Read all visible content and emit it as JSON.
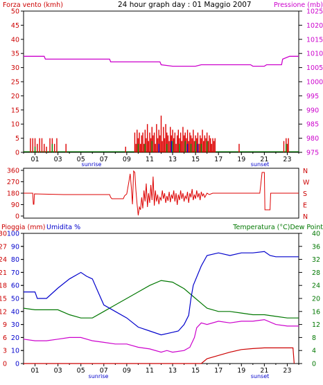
{
  "chart_data": [
    {
      "type": "line",
      "title": "24 hour graph day : 01 Maggio 2007",
      "left_label": "Forza vento (kmh)",
      "right_label": "Pressione (mb)",
      "colors": {
        "wind_gust": "#dd0000",
        "wind_avg": "#008800",
        "wind_alt": "#0000cc",
        "pressure": "#cc00cc",
        "axis_left": "#cc0000",
        "axis_right": "#cc00cc"
      },
      "ylim_left": [
        0,
        50
      ],
      "yticks_left": [
        "0",
        "5",
        "10",
        "15",
        "20",
        "25",
        "30",
        "35",
        "40",
        "45",
        "50"
      ],
      "ylim_right": [
        975,
        1025
      ],
      "yticks_right": [
        "975",
        "980",
        "985",
        "990",
        "995",
        "1000",
        "1005",
        "1010",
        "1015",
        "1020",
        "1025"
      ],
      "x_hours": [
        "01",
        "03",
        "05",
        "07",
        "09",
        "11",
        "13",
        "15",
        "17",
        "19",
        "21",
        "23"
      ],
      "sunrise_label": "sunrise",
      "sunset_label": "sunset",
      "pressure_series": [
        [
          0,
          1009
        ],
        [
          1.8,
          1009
        ],
        [
          1.9,
          1008
        ],
        [
          7.5,
          1008
        ],
        [
          7.6,
          1007
        ],
        [
          11.9,
          1007
        ],
        [
          12,
          1006
        ],
        [
          13,
          1005.5
        ],
        [
          15,
          1005.5
        ],
        [
          15.5,
          1006
        ],
        [
          17.8,
          1006
        ],
        [
          18,
          1006
        ],
        [
          19.8,
          1006
        ],
        [
          20,
          1005.5
        ],
        [
          21,
          1005.5
        ],
        [
          21.2,
          1006
        ],
        [
          22.5,
          1006
        ],
        [
          22.6,
          1008
        ],
        [
          23.2,
          1009
        ],
        [
          24,
          1009
        ]
      ],
      "wind_gusts": [
        [
          0.6,
          5
        ],
        [
          0.8,
          5
        ],
        [
          1.0,
          5
        ],
        [
          1.2,
          3
        ],
        [
          1.4,
          5
        ],
        [
          1.6,
          5
        ],
        [
          1.8,
          3
        ],
        [
          2.0,
          2
        ],
        [
          2.3,
          5
        ],
        [
          2.5,
          5
        ],
        [
          2.7,
          3
        ],
        [
          2.9,
          5
        ],
        [
          3.7,
          3
        ],
        [
          8.9,
          2
        ],
        [
          9.7,
          7
        ],
        [
          9.8,
          3
        ],
        [
          9.9,
          8
        ],
        [
          10.0,
          5
        ],
        [
          10.1,
          7
        ],
        [
          10.2,
          3
        ],
        [
          10.3,
          6
        ],
        [
          10.4,
          7
        ],
        [
          10.5,
          3
        ],
        [
          10.6,
          8
        ],
        [
          10.7,
          5
        ],
        [
          10.8,
          10
        ],
        [
          10.9,
          4
        ],
        [
          11.0,
          7
        ],
        [
          11.1,
          5
        ],
        [
          11.2,
          9
        ],
        [
          11.3,
          6
        ],
        [
          11.4,
          7
        ],
        [
          11.5,
          3
        ],
        [
          11.6,
          10
        ],
        [
          11.7,
          5
        ],
        [
          11.8,
          8
        ],
        [
          11.9,
          6
        ],
        [
          12.0,
          13
        ],
        [
          12.1,
          4
        ],
        [
          12.2,
          9
        ],
        [
          12.3,
          5
        ],
        [
          12.4,
          10
        ],
        [
          12.5,
          7
        ],
        [
          12.6,
          6
        ],
        [
          12.7,
          4
        ],
        [
          12.8,
          9
        ],
        [
          12.9,
          6
        ],
        [
          13.0,
          8
        ],
        [
          13.1,
          5
        ],
        [
          13.2,
          7
        ],
        [
          13.3,
          3
        ],
        [
          13.4,
          6
        ],
        [
          13.5,
          8
        ],
        [
          13.6,
          5
        ],
        [
          13.7,
          7
        ],
        [
          13.8,
          4
        ],
        [
          13.9,
          9
        ],
        [
          14.0,
          6
        ],
        [
          14.1,
          7
        ],
        [
          14.2,
          5
        ],
        [
          14.3,
          8
        ],
        [
          14.4,
          4
        ],
        [
          14.5,
          7
        ],
        [
          14.6,
          6
        ],
        [
          14.7,
          5
        ],
        [
          14.8,
          8
        ],
        [
          14.9,
          4
        ],
        [
          15.0,
          6
        ],
        [
          15.1,
          5
        ],
        [
          15.2,
          7
        ],
        [
          15.3,
          3
        ],
        [
          15.4,
          6
        ],
        [
          15.5,
          5
        ],
        [
          15.6,
          8
        ],
        [
          15.7,
          4
        ],
        [
          15.8,
          6
        ],
        [
          15.9,
          5
        ],
        [
          16.0,
          7
        ],
        [
          16.1,
          4
        ],
        [
          16.2,
          6
        ],
        [
          16.3,
          5
        ],
        [
          16.4,
          3
        ],
        [
          16.5,
          5
        ],
        [
          16.6,
          4
        ],
        [
          16.7,
          5
        ],
        [
          18.8,
          3
        ],
        [
          22.7,
          4
        ],
        [
          22.9,
          5
        ],
        [
          23.0,
          3
        ],
        [
          23.1,
          5
        ]
      ],
      "wind_avg_bars": [
        [
          1.0,
          2
        ],
        [
          2.5,
          3
        ],
        [
          10.0,
          3
        ],
        [
          10.6,
          3
        ],
        [
          11.2,
          4
        ],
        [
          12.5,
          3
        ],
        [
          13.0,
          4
        ],
        [
          13.6,
          3
        ],
        [
          14.1,
          4
        ],
        [
          14.6,
          3
        ],
        [
          15.0,
          4
        ],
        [
          15.5,
          3
        ],
        [
          16.0,
          4
        ],
        [
          22.9,
          3
        ]
      ],
      "wind_alt_bars": [
        [
          11.8,
          3
        ],
        [
          12.9,
          4
        ],
        [
          14.3,
          3
        ],
        [
          15.2,
          3
        ]
      ]
    },
    {
      "type": "line",
      "ylim": [
        0,
        360
      ],
      "yticks": [
        "0",
        "90",
        "180",
        "270",
        "360"
      ],
      "right_labels": [
        "N",
        "W",
        "S",
        "E",
        "N"
      ],
      "color": "#dd0000",
      "direction_series": [
        [
          0,
          180
        ],
        [
          0.8,
          180
        ],
        [
          0.85,
          100
        ],
        [
          0.9,
          100
        ],
        [
          0.95,
          175
        ],
        [
          3.5,
          170
        ],
        [
          7.5,
          170
        ],
        [
          7.6,
          150
        ],
        [
          7.7,
          140
        ],
        [
          8.7,
          140
        ],
        [
          8.8,
          160
        ],
        [
          9.0,
          175
        ],
        [
          9.2,
          270
        ],
        [
          9.3,
          320
        ],
        [
          9.4,
          220
        ],
        [
          9.5,
          100
        ],
        [
          9.6,
          340
        ],
        [
          9.7,
          330
        ],
        [
          9.8,
          200
        ],
        [
          9.9,
          100
        ],
        [
          10.0,
          20
        ],
        [
          10.1,
          80
        ],
        [
          10.2,
          60
        ],
        [
          10.3,
          150
        ],
        [
          10.4,
          70
        ],
        [
          10.5,
          200
        ],
        [
          10.6,
          120
        ],
        [
          10.7,
          250
        ],
        [
          10.8,
          80
        ],
        [
          10.9,
          180
        ],
        [
          11.0,
          110
        ],
        [
          11.1,
          240
        ],
        [
          11.2,
          130
        ],
        [
          11.3,
          300
        ],
        [
          11.4,
          90
        ],
        [
          11.5,
          200
        ],
        [
          11.6,
          120
        ],
        [
          11.7,
          170
        ],
        [
          11.8,
          100
        ],
        [
          11.9,
          150
        ],
        [
          12.0,
          130
        ],
        [
          12.1,
          200
        ],
        [
          12.2,
          140
        ],
        [
          12.3,
          180
        ],
        [
          12.4,
          110
        ],
        [
          12.5,
          160
        ],
        [
          12.6,
          125
        ],
        [
          12.7,
          190
        ],
        [
          12.8,
          115
        ],
        [
          12.9,
          170
        ],
        [
          13.0,
          140
        ],
        [
          13.1,
          200
        ],
        [
          13.2,
          120
        ],
        [
          13.3,
          180
        ],
        [
          13.4,
          95
        ],
        [
          13.5,
          170
        ],
        [
          13.6,
          130
        ],
        [
          13.7,
          200
        ],
        [
          13.8,
          140
        ],
        [
          13.9,
          180
        ],
        [
          14.0,
          120
        ],
        [
          14.1,
          160
        ],
        [
          14.2,
          140
        ],
        [
          14.3,
          190
        ],
        [
          14.4,
          110
        ],
        [
          14.5,
          180
        ],
        [
          14.6,
          150
        ],
        [
          14.7,
          210
        ],
        [
          14.8,
          130
        ],
        [
          14.9,
          170
        ],
        [
          15.0,
          140
        ],
        [
          15.1,
          200
        ],
        [
          15.2,
          150
        ],
        [
          15.3,
          180
        ],
        [
          15.4,
          130
        ],
        [
          15.5,
          190
        ],
        [
          15.6,
          160
        ],
        [
          15.7,
          175
        ],
        [
          15.8,
          150
        ],
        [
          16.0,
          180
        ],
        [
          16.2,
          170
        ],
        [
          16.5,
          180
        ],
        [
          17.0,
          180
        ],
        [
          20.0,
          180
        ],
        [
          20.6,
          180
        ],
        [
          20.7,
          250
        ],
        [
          20.8,
          330
        ],
        [
          21.0,
          330
        ],
        [
          21.05,
          60
        ],
        [
          21.5,
          60
        ],
        [
          21.55,
          180
        ],
        [
          24,
          180
        ]
      ]
    },
    {
      "type": "line",
      "left_label_rain": "Pioggia (mm)",
      "left_label_hum": "Umidita %",
      "right_label": "Temperatura (°C)Dew Point",
      "colors": {
        "humidity": "#0000cc",
        "temperature": "#007700",
        "dewpoint": "#cc00cc",
        "rain": "#cc0000",
        "axis_rain": "#cc0000",
        "axis_hum": "#0000cc",
        "axis_temp": "#007700"
      },
      "ylim_left": [
        0,
        100
      ],
      "yticks_hum": [
        "0",
        "10",
        "20",
        "30",
        "40",
        "50",
        "60",
        "70",
        "80",
        "90",
        "100"
      ],
      "yticks_rain": [
        "0",
        "3",
        "6",
        "9",
        "12",
        "15",
        "18",
        "21",
        "24",
        "27",
        "30"
      ],
      "ylim_right": [
        0,
        40
      ],
      "yticks_temp": [
        "0",
        "4",
        "8",
        "12",
        "16",
        "20",
        "24",
        "28",
        "32",
        "36",
        "40"
      ],
      "x_hours": [
        "01",
        "03",
        "05",
        "07",
        "09",
        "11",
        "13",
        "15",
        "17",
        "19",
        "21",
        "23"
      ],
      "sunrise_label": "sunrise",
      "sunset_label": "sunset",
      "humidity_series": [
        [
          0,
          55
        ],
        [
          1,
          55
        ],
        [
          1.2,
          50
        ],
        [
          2,
          50
        ],
        [
          3,
          58
        ],
        [
          4,
          65
        ],
        [
          5,
          70
        ],
        [
          5.5,
          67
        ],
        [
          6,
          65
        ],
        [
          6.5,
          55
        ],
        [
          7,
          45
        ],
        [
          8,
          40
        ],
        [
          9,
          35
        ],
        [
          10,
          28
        ],
        [
          11,
          25
        ],
        [
          12,
          22
        ],
        [
          13,
          24
        ],
        [
          13.5,
          25
        ],
        [
          14,
          30
        ],
        [
          14.4,
          37
        ],
        [
          14.6,
          50
        ],
        [
          14.8,
          60
        ],
        [
          15.5,
          75
        ],
        [
          16,
          83
        ],
        [
          17,
          85
        ],
        [
          18,
          83
        ],
        [
          19,
          85
        ],
        [
          20,
          85
        ],
        [
          21,
          86
        ],
        [
          21.5,
          83
        ],
        [
          22,
          82
        ],
        [
          23,
          82
        ],
        [
          24,
          82
        ]
      ],
      "temperature_series": [
        [
          0,
          17
        ],
        [
          1,
          16.5
        ],
        [
          3,
          16.5
        ],
        [
          4,
          15
        ],
        [
          5,
          14
        ],
        [
          6,
          14
        ],
        [
          7,
          16
        ],
        [
          8,
          18
        ],
        [
          9,
          20
        ],
        [
          10,
          22
        ],
        [
          11,
          24
        ],
        [
          12,
          25.5
        ],
        [
          13,
          25
        ],
        [
          13.5,
          24
        ],
        [
          14,
          23
        ],
        [
          15,
          20
        ],
        [
          15.5,
          18.5
        ],
        [
          16,
          17
        ],
        [
          17,
          16
        ],
        [
          18,
          16
        ],
        [
          19,
          15.5
        ],
        [
          20,
          15
        ],
        [
          21,
          15
        ],
        [
          22,
          14.5
        ],
        [
          23,
          14
        ],
        [
          24,
          14
        ]
      ],
      "dewpoint_series": [
        [
          0,
          7.5
        ],
        [
          1,
          7
        ],
        [
          2,
          7
        ],
        [
          3,
          7.5
        ],
        [
          4,
          8
        ],
        [
          5,
          8
        ],
        [
          6,
          7
        ],
        [
          7,
          6.5
        ],
        [
          8,
          6
        ],
        [
          9,
          6
        ],
        [
          10,
          5
        ],
        [
          11,
          4.5
        ],
        [
          12,
          3.5
        ],
        [
          12.5,
          4
        ],
        [
          13,
          3.5
        ],
        [
          14,
          4
        ],
        [
          14.5,
          5
        ],
        [
          14.9,
          8
        ],
        [
          15.1,
          11
        ],
        [
          15.5,
          12.5
        ],
        [
          16,
          12
        ],
        [
          17,
          13
        ],
        [
          18,
          12.5
        ],
        [
          19,
          13
        ],
        [
          20,
          13
        ],
        [
          21,
          13.5
        ],
        [
          22,
          12
        ],
        [
          23,
          11.5
        ],
        [
          24,
          11.5
        ]
      ],
      "rain_series": [
        [
          0,
          0
        ],
        [
          15.5,
          0
        ],
        [
          16,
          1.5
        ],
        [
          17,
          2.5
        ],
        [
          18,
          3.5
        ],
        [
          19,
          4.3
        ],
        [
          20,
          4.6
        ],
        [
          21,
          4.8
        ],
        [
          23.5,
          4.8
        ],
        [
          23.6,
          0
        ]
      ]
    }
  ]
}
